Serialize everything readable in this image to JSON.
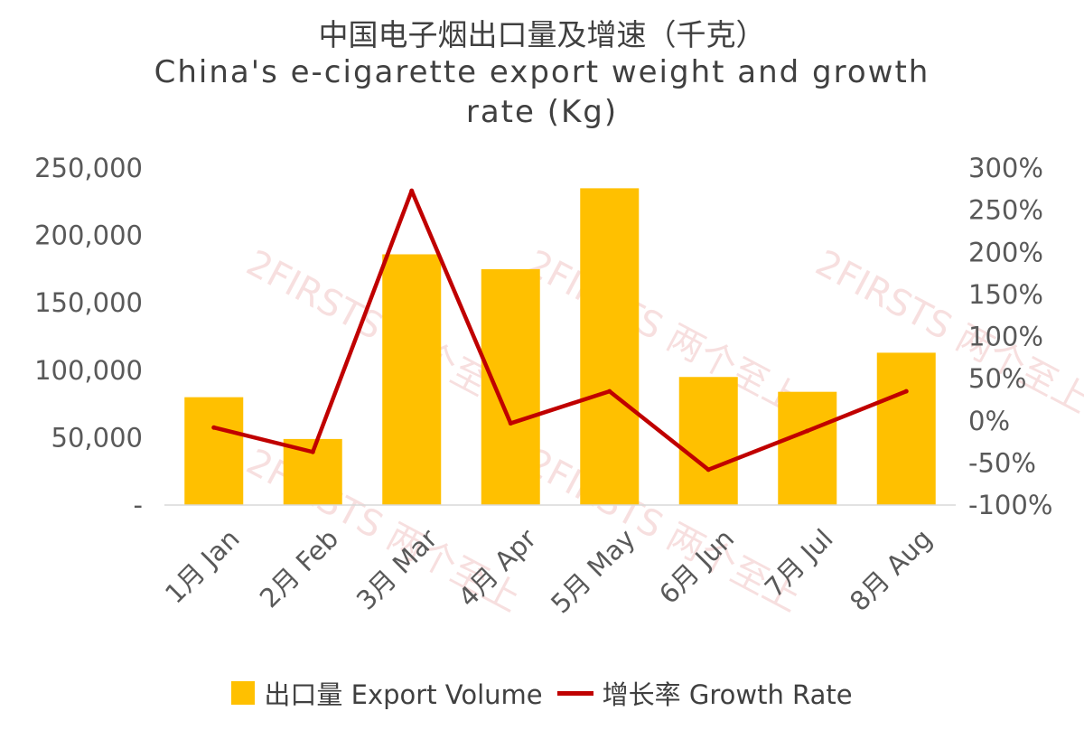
{
  "chart_data": {
    "type": "bar",
    "title": "中国电子烟出口量及增速（千克）",
    "subtitle": "China's e-cigarette export weight and growth rate (Kg)",
    "categories": [
      "1月 Jan",
      "2月 Feb",
      "3月 Mar",
      "4月 Apr",
      "5月 May",
      "6月 Jun",
      "7月 Jul",
      "8月 Aug"
    ],
    "series": [
      {
        "name": "出口量 Export Volume",
        "type": "bar",
        "axis": "left",
        "color": "#ffc000",
        "values": [
          80000,
          49000,
          186000,
          175000,
          235000,
          95000,
          84000,
          113000
        ]
      },
      {
        "name": "增长率 Growth Rate",
        "type": "line",
        "axis": "right",
        "color": "#c00000",
        "values": [
          -0.08,
          -0.37,
          2.73,
          -0.03,
          0.35,
          -0.58,
          -0.12,
          0.35
        ]
      }
    ],
    "yleft": {
      "ylim": [
        0,
        250000
      ],
      "ticks": [
        "-",
        "50,000",
        "100,000",
        "150,000",
        "200,000",
        "250,000"
      ]
    },
    "yright": {
      "ylim": [
        -1.0,
        3.0
      ],
      "ticks": [
        "-100%",
        "-50%",
        "0%",
        "50%",
        "100%",
        "150%",
        "200%",
        "250%",
        "300%"
      ]
    },
    "grid": false,
    "legend": "bottom",
    "watermark": "2FIRSTS 两个至上"
  }
}
